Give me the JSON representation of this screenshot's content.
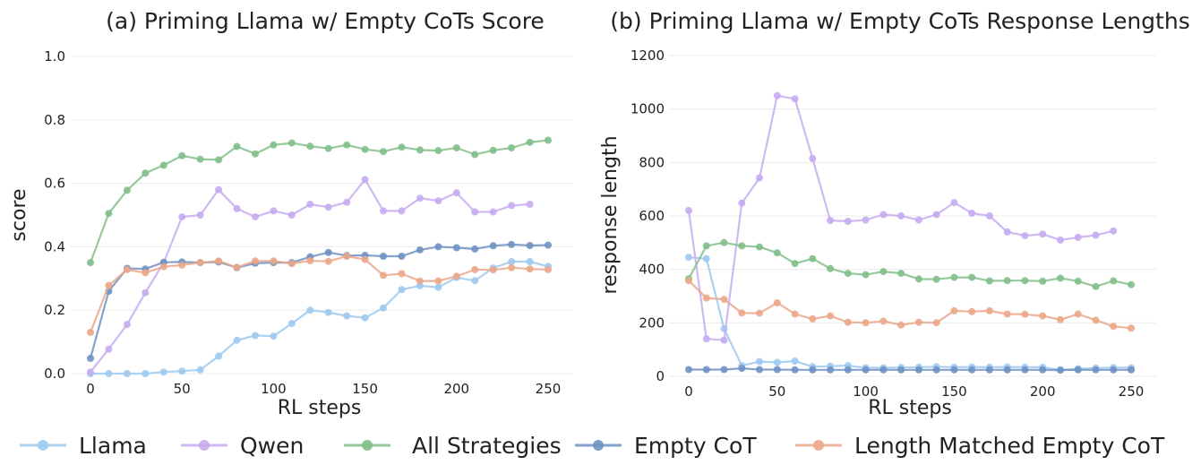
{
  "chart_data": [
    {
      "type": "line",
      "title": "(a) Priming Llama w/ Empty CoTs Score",
      "xlabel": "RL steps",
      "ylabel": "score",
      "xlim": [
        0,
        250
      ],
      "ylim": [
        0,
        1.0
      ],
      "xticks": [
        0,
        50,
        100,
        150,
        200,
        250
      ],
      "yticks": [
        0.0,
        0.2,
        0.4,
        0.6,
        0.8,
        1.0
      ],
      "ytick_labels": [
        "0.0",
        "0.2",
        "0.4",
        "0.6",
        "0.8",
        "1.0"
      ],
      "grid": true,
      "series": [
        {
          "name": "Llama",
          "color": "#9ec9ef",
          "x": [
            0,
            10,
            20,
            30,
            40,
            50,
            60,
            70,
            80,
            90,
            100,
            110,
            120,
            130,
            140,
            150,
            160,
            170,
            180,
            190,
            200,
            210,
            220,
            230,
            240,
            250
          ],
          "values": [
            0.0,
            0.0,
            0.0,
            0.0,
            0.005,
            0.008,
            0.012,
            0.055,
            0.105,
            0.12,
            0.118,
            0.158,
            0.2,
            0.193,
            0.182,
            0.176,
            0.207,
            0.265,
            0.277,
            0.272,
            0.303,
            0.293,
            0.333,
            0.353,
            0.353,
            0.338
          ]
        },
        {
          "name": "Qwen",
          "color": "#c7acf1",
          "x": [
            0,
            10,
            20,
            30,
            40,
            50,
            60,
            70,
            80,
            90,
            100,
            110,
            120,
            130,
            140,
            150,
            160,
            170,
            180,
            190,
            200,
            210,
            220,
            230,
            240
          ],
          "values": [
            0.005,
            0.077,
            0.155,
            0.255,
            0.35,
            0.494,
            0.5,
            0.58,
            0.52,
            0.494,
            0.513,
            0.5,
            0.534,
            0.525,
            0.54,
            0.612,
            0.513,
            0.513,
            0.553,
            0.545,
            0.57,
            0.51,
            0.51,
            0.53,
            0.534
          ]
        },
        {
          "name": "All Strategies",
          "color": "#82bf8b",
          "x": [
            0,
            10,
            20,
            30,
            40,
            50,
            60,
            70,
            80,
            90,
            100,
            110,
            120,
            130,
            140,
            150,
            160,
            170,
            180,
            190,
            200,
            210,
            220,
            230,
            240,
            250
          ],
          "values": [
            0.35,
            0.505,
            0.578,
            0.632,
            0.657,
            0.687,
            0.676,
            0.674,
            0.716,
            0.693,
            0.721,
            0.727,
            0.717,
            0.71,
            0.721,
            0.707,
            0.7,
            0.714,
            0.705,
            0.703,
            0.712,
            0.691,
            0.704,
            0.712,
            0.729,
            0.736
          ]
        },
        {
          "name": "Empty CoT",
          "color": "#6f92c2",
          "x": [
            0,
            10,
            20,
            30,
            40,
            50,
            60,
            70,
            80,
            90,
            100,
            110,
            120,
            130,
            140,
            150,
            160,
            170,
            180,
            190,
            200,
            210,
            220,
            230,
            240,
            250
          ],
          "values": [
            0.048,
            0.26,
            0.332,
            0.33,
            0.351,
            0.352,
            0.35,
            0.352,
            0.334,
            0.348,
            0.35,
            0.35,
            0.368,
            0.382,
            0.372,
            0.373,
            0.37,
            0.37,
            0.39,
            0.4,
            0.397,
            0.393,
            0.403,
            0.407,
            0.404,
            0.405
          ]
        },
        {
          "name": "Length Matched Empty CoT",
          "color": "#eba789",
          "x": [
            0,
            10,
            20,
            30,
            40,
            50,
            60,
            70,
            80,
            90,
            100,
            110,
            120,
            130,
            140,
            150,
            160,
            170,
            180,
            190,
            200,
            210,
            220,
            230,
            240,
            250
          ],
          "values": [
            0.13,
            0.278,
            0.328,
            0.318,
            0.337,
            0.342,
            0.35,
            0.355,
            0.335,
            0.355,
            0.355,
            0.347,
            0.356,
            0.354,
            0.37,
            0.36,
            0.31,
            0.315,
            0.292,
            0.292,
            0.307,
            0.328,
            0.327,
            0.334,
            0.33,
            0.328
          ]
        }
      ]
    },
    {
      "type": "line",
      "title": "(b) Priming Llama w/ Empty CoTs Response Lengths",
      "xlabel": "RL steps",
      "ylabel": "response length",
      "xlim": [
        0,
        250
      ],
      "ylim": [
        0,
        1200
      ],
      "xticks": [
        0,
        50,
        100,
        150,
        200,
        250
      ],
      "yticks": [
        0,
        200,
        400,
        600,
        800,
        1000,
        1200
      ],
      "ytick_labels": [
        "0",
        "200",
        "400",
        "600",
        "800",
        "1000",
        "1200"
      ],
      "grid": true,
      "series": [
        {
          "name": "Llama",
          "color": "#9ec9ef",
          "x": [
            0,
            10,
            20,
            30,
            40,
            50,
            60,
            70,
            80,
            90,
            100,
            110,
            120,
            130,
            140,
            150,
            160,
            170,
            180,
            190,
            200,
            210,
            220,
            230,
            240,
            250
          ],
          "values": [
            445,
            440,
            178,
            40,
            55,
            52,
            57,
            36,
            38,
            40,
            32,
            32,
            33,
            34,
            36,
            34,
            35,
            34,
            35,
            34,
            34,
            24,
            28,
            31,
            33,
            32
          ]
        },
        {
          "name": "Qwen",
          "color": "#c7acf1",
          "x": [
            0,
            10,
            20,
            30,
            40,
            50,
            60,
            70,
            80,
            90,
            100,
            110,
            120,
            130,
            140,
            150,
            160,
            170,
            180,
            190,
            200,
            210,
            220,
            230,
            240
          ],
          "values": [
            620,
            140,
            135,
            648,
            742,
            1050,
            1038,
            815,
            583,
            580,
            585,
            605,
            600,
            585,
            605,
            650,
            610,
            600,
            540,
            526,
            532,
            510,
            520,
            528,
            544
          ]
        },
        {
          "name": "All Strategies",
          "color": "#82bf8b",
          "x": [
            0,
            10,
            20,
            30,
            40,
            50,
            60,
            70,
            80,
            90,
            100,
            110,
            120,
            130,
            140,
            150,
            160,
            170,
            180,
            190,
            200,
            210,
            220,
            230,
            240,
            250
          ],
          "values": [
            365,
            488,
            500,
            488,
            484,
            462,
            422,
            440,
            403,
            385,
            380,
            392,
            385,
            364,
            363,
            370,
            370,
            357,
            358,
            358,
            356,
            367,
            356,
            336,
            357,
            343
          ]
        },
        {
          "name": "Empty CoT",
          "color": "#6f92c2",
          "x": [
            0,
            10,
            20,
            30,
            40,
            50,
            60,
            70,
            80,
            90,
            100,
            110,
            120,
            130,
            140,
            150,
            160,
            170,
            180,
            190,
            200,
            210,
            220,
            230,
            240,
            250
          ],
          "values": [
            25,
            25,
            25,
            30,
            25,
            25,
            24,
            24,
            24,
            24,
            24,
            24,
            24,
            24,
            24,
            24,
            24,
            24,
            24,
            24,
            24,
            23,
            24,
            24,
            24,
            24
          ]
        },
        {
          "name": "Length Matched Empty CoT",
          "color": "#eba789",
          "x": [
            0,
            10,
            20,
            30,
            40,
            50,
            60,
            70,
            80,
            90,
            100,
            110,
            120,
            130,
            140,
            150,
            160,
            170,
            180,
            190,
            200,
            210,
            220,
            230,
            240,
            250
          ],
          "values": [
            358,
            293,
            288,
            237,
            236,
            275,
            233,
            215,
            226,
            202,
            200,
            206,
            192,
            202,
            200,
            245,
            242,
            245,
            233,
            232,
            226,
            212,
            233,
            210,
            187,
            180
          ]
        }
      ]
    }
  ],
  "legend": {
    "placement": "bottom",
    "entries": [
      {
        "label": "Llama",
        "color": "#9ec9ef"
      },
      {
        "label": "Qwen",
        "color": "#c7acf1"
      },
      {
        "label": "All Strategies",
        "color": "#82bf8b"
      },
      {
        "label": "Empty CoT",
        "color": "#6f92c2"
      },
      {
        "label": "Length Matched Empty CoT",
        "color": "#eba789"
      }
    ]
  }
}
